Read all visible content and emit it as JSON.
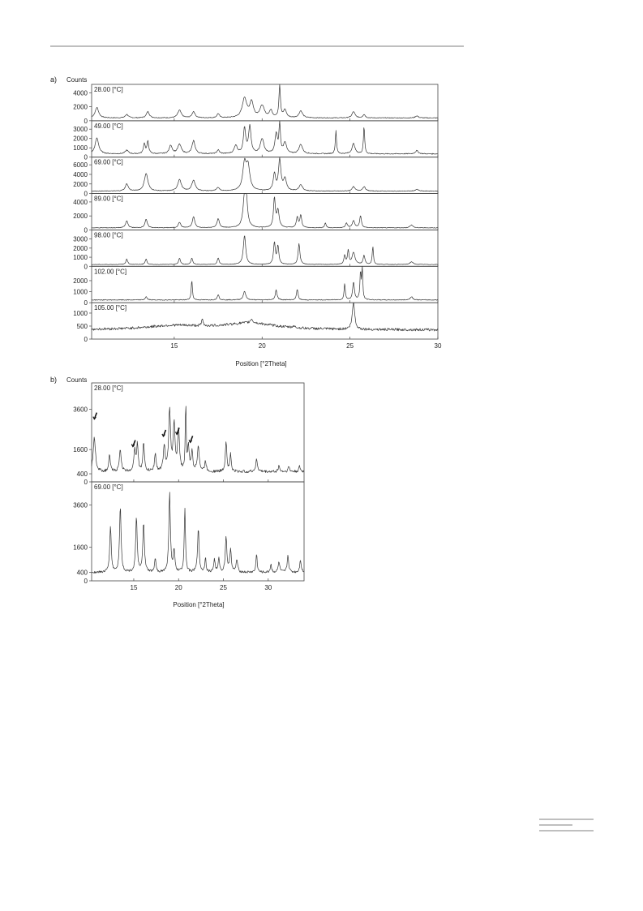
{
  "chart_data": [
    {
      "type": "line",
      "panel_label": "a)",
      "ylabel": "Counts",
      "xlabel": "Position [°2Theta]",
      "xlim": [
        10.3,
        30
      ],
      "x_ticks": [
        "15",
        "20",
        "25",
        "30"
      ],
      "series": [
        {
          "label": "28.00 [°C]",
          "ylim": [
            0,
            5200
          ],
          "y_ticks": [
            "4000",
            "2000",
            "0"
          ],
          "baseline": 400,
          "peaks": [
            [
              10.6,
              1500,
              0.12
            ],
            [
              12.3,
              500,
              0.1
            ],
            [
              13.5,
              900,
              0.1
            ],
            [
              15.3,
              1100,
              0.12
            ],
            [
              16.1,
              900,
              0.1
            ],
            [
              17.5,
              600,
              0.08
            ],
            [
              19.0,
              2800,
              0.15
            ],
            [
              19.4,
              2200,
              0.12
            ],
            [
              20.0,
              1700,
              0.15
            ],
            [
              20.5,
              1000,
              0.1
            ],
            [
              21.0,
              4600,
              0.05
            ],
            [
              21.3,
              1100,
              0.1
            ],
            [
              22.2,
              1000,
              0.12
            ],
            [
              25.2,
              900,
              0.1
            ],
            [
              25.8,
              500,
              0.08
            ],
            [
              28.8,
              300,
              0.1
            ]
          ]
        },
        {
          "label": "49.00 [°C]",
          "ylim": [
            0,
            3900
          ],
          "y_ticks": [
            "3000",
            "2000",
            "1000",
            "0"
          ],
          "baseline": 350,
          "peaks": [
            [
              10.6,
              1700,
              0.12
            ],
            [
              12.3,
              400,
              0.1
            ],
            [
              13.3,
              1100,
              0.06
            ],
            [
              13.5,
              1300,
              0.06
            ],
            [
              14.8,
              900,
              0.1
            ],
            [
              15.3,
              1000,
              0.12
            ],
            [
              16.1,
              1400,
              0.1
            ],
            [
              17.5,
              400,
              0.08
            ],
            [
              18.5,
              900,
              0.1
            ],
            [
              19.0,
              2700,
              0.08
            ],
            [
              19.3,
              2900,
              0.08
            ],
            [
              20.0,
              1600,
              0.12
            ],
            [
              20.8,
              2100,
              0.08
            ],
            [
              21.0,
              3100,
              0.05
            ],
            [
              21.3,
              1200,
              0.1
            ],
            [
              22.2,
              1000,
              0.12
            ],
            [
              24.2,
              2500,
              0.04
            ],
            [
              25.2,
              1100,
              0.1
            ],
            [
              25.8,
              3000,
              0.04
            ],
            [
              28.8,
              350,
              0.1
            ]
          ]
        },
        {
          "label": "69.00 [°C]",
          "ylim": [
            0,
            7600
          ],
          "y_ticks": [
            "6000",
            "4000",
            "2000",
            "0"
          ],
          "baseline": 500,
          "peaks": [
            [
              12.3,
              1500,
              0.1
            ],
            [
              13.4,
              3700,
              0.12
            ],
            [
              15.3,
              2400,
              0.12
            ],
            [
              16.1,
              2200,
              0.12
            ],
            [
              17.5,
              700,
              0.1
            ],
            [
              19.0,
              5500,
              0.12
            ],
            [
              19.2,
              4800,
              0.12
            ],
            [
              20.7,
              3500,
              0.08
            ],
            [
              21.0,
              6500,
              0.08
            ],
            [
              21.3,
              2500,
              0.1
            ],
            [
              22.2,
              1300,
              0.12
            ],
            [
              25.2,
              900,
              0.1
            ],
            [
              25.8,
              900,
              0.1
            ],
            [
              28.8,
              400,
              0.1
            ]
          ]
        },
        {
          "label": "89.00 [°C]",
          "ylim": [
            0,
            5200
          ],
          "y_ticks": [
            "4000",
            "2000",
            "0"
          ],
          "baseline": 300,
          "peaks": [
            [
              12.3,
              1000,
              0.08
            ],
            [
              13.4,
              1200,
              0.08
            ],
            [
              15.3,
              800,
              0.08
            ],
            [
              16.1,
              1600,
              0.08
            ],
            [
              17.5,
              1300,
              0.08
            ],
            [
              19.0,
              4000,
              0.1
            ],
            [
              19.1,
              3500,
              0.08
            ],
            [
              20.7,
              4200,
              0.06
            ],
            [
              20.9,
              2500,
              0.08
            ],
            [
              22.0,
              1500,
              0.06
            ],
            [
              22.2,
              1800,
              0.06
            ],
            [
              23.6,
              700,
              0.05
            ],
            [
              24.8,
              700,
              0.06
            ],
            [
              25.2,
              1000,
              0.08
            ],
            [
              25.6,
              1700,
              0.06
            ],
            [
              28.5,
              400,
              0.1
            ]
          ]
        },
        {
          "label": "98.00 [°C]",
          "ylim": [
            0,
            4000
          ],
          "y_ticks": [
            "3000",
            "2000",
            "1000",
            "0"
          ],
          "baseline": 200,
          "peaks": [
            [
              12.3,
              600,
              0.06
            ],
            [
              13.4,
              600,
              0.06
            ],
            [
              15.3,
              700,
              0.06
            ],
            [
              16.0,
              700,
              0.06
            ],
            [
              17.5,
              700,
              0.06
            ],
            [
              19.0,
              3200,
              0.08
            ],
            [
              20.7,
              2400,
              0.06
            ],
            [
              20.9,
              2000,
              0.06
            ],
            [
              22.1,
              2300,
              0.06
            ],
            [
              24.7,
              1000,
              0.05
            ],
            [
              24.9,
              1500,
              0.05
            ],
            [
              25.2,
              1300,
              0.1
            ],
            [
              25.8,
              1000,
              0.06
            ],
            [
              26.3,
              2000,
              0.04
            ],
            [
              28.5,
              300,
              0.1
            ]
          ]
        },
        {
          "label": "102.00 [°C]",
          "ylim": [
            0,
            3300
          ],
          "y_ticks": [
            "2000",
            "1000",
            "0"
          ],
          "baseline": 250,
          "peaks": [
            [
              13.4,
              300,
              0.06
            ],
            [
              16.0,
              1800,
              0.04
            ],
            [
              17.5,
              500,
              0.06
            ],
            [
              19.0,
              800,
              0.08
            ],
            [
              20.8,
              900,
              0.06
            ],
            [
              22.0,
              1000,
              0.05
            ],
            [
              24.7,
              1500,
              0.04
            ],
            [
              25.2,
              1600,
              0.06
            ],
            [
              25.6,
              2500,
              0.04
            ],
            [
              25.7,
              3200,
              0.03
            ],
            [
              28.5,
              300,
              0.08
            ]
          ]
        },
        {
          "label": "105.00 [°C]",
          "ylim": [
            0,
            1400
          ],
          "y_ticks": [
            "1000",
            "500",
            "0"
          ],
          "baseline": 350,
          "peaks": [
            [
              15.0,
              150,
              2.0
            ],
            [
              19.3,
              250,
              1.8
            ],
            [
              16.6,
              250,
              0.05
            ],
            [
              19.4,
              150,
              0.08
            ],
            [
              21.8,
              80,
              0.05
            ],
            [
              25.2,
              1050,
              0.08
            ]
          ]
        }
      ]
    },
    {
      "type": "line",
      "panel_label": "b)",
      "ylabel": "Counts",
      "xlabel": "Position [°2Theta]",
      "xlim": [
        10.3,
        34
      ],
      "x_ticks": [
        "15",
        "20",
        "25",
        "30"
      ],
      "series": [
        {
          "label": "28.00 [°C]",
          "ylim": [
            0,
            4900
          ],
          "y_ticks": [
            "3600",
            "1600",
            "400",
            "0"
          ],
          "baseline": 500,
          "peaks": [
            [
              10.6,
              1700,
              0.15
            ],
            [
              12.3,
              800,
              0.1
            ],
            [
              13.5,
              1100,
              0.12
            ],
            [
              15.1,
              1000,
              0.12
            ],
            [
              15.4,
              1300,
              0.1
            ],
            [
              16.1,
              1400,
              0.1
            ],
            [
              17.4,
              900,
              0.1
            ],
            [
              18.4,
              1200,
              0.12
            ],
            [
              19.0,
              3000,
              0.12
            ],
            [
              19.5,
              2300,
              0.12
            ],
            [
              20.0,
              2000,
              0.12
            ],
            [
              20.8,
              3400,
              0.06
            ],
            [
              21.1,
              1200,
              0.1
            ],
            [
              21.5,
              1000,
              0.1
            ],
            [
              22.2,
              1300,
              0.12
            ],
            [
              23.0,
              500,
              0.1
            ],
            [
              25.3,
              1500,
              0.1
            ],
            [
              25.8,
              900,
              0.08
            ],
            [
              28.7,
              600,
              0.12
            ],
            [
              31.2,
              300,
              0.1
            ],
            [
              32.3,
              250,
              0.1
            ],
            [
              33.5,
              250,
              0.1
            ]
          ]
        },
        {
          "label": "69.00 [°C]",
          "ylim": [
            0,
            4700
          ],
          "y_ticks": [
            "3600",
            "1600",
            "400",
            "0"
          ],
          "baseline": 400,
          "peaks": [
            [
              12.4,
              2200,
              0.1
            ],
            [
              13.5,
              3200,
              0.1
            ],
            [
              15.3,
              2600,
              0.1
            ],
            [
              16.1,
              2400,
              0.1
            ],
            [
              17.4,
              700,
              0.08
            ],
            [
              19.0,
              3800,
              0.1
            ],
            [
              19.5,
              1000,
              0.1
            ],
            [
              20.7,
              3100,
              0.08
            ],
            [
              22.2,
              2100,
              0.1
            ],
            [
              23.0,
              700,
              0.08
            ],
            [
              24.0,
              600,
              0.1
            ],
            [
              24.5,
              700,
              0.08
            ],
            [
              25.3,
              1700,
              0.1
            ],
            [
              25.8,
              1100,
              0.1
            ],
            [
              26.5,
              600,
              0.1
            ],
            [
              28.7,
              900,
              0.08
            ],
            [
              30.3,
              400,
              0.08
            ],
            [
              31.2,
              500,
              0.1
            ],
            [
              32.2,
              800,
              0.1
            ],
            [
              33.6,
              600,
              0.1
            ]
          ]
        }
      ]
    }
  ]
}
